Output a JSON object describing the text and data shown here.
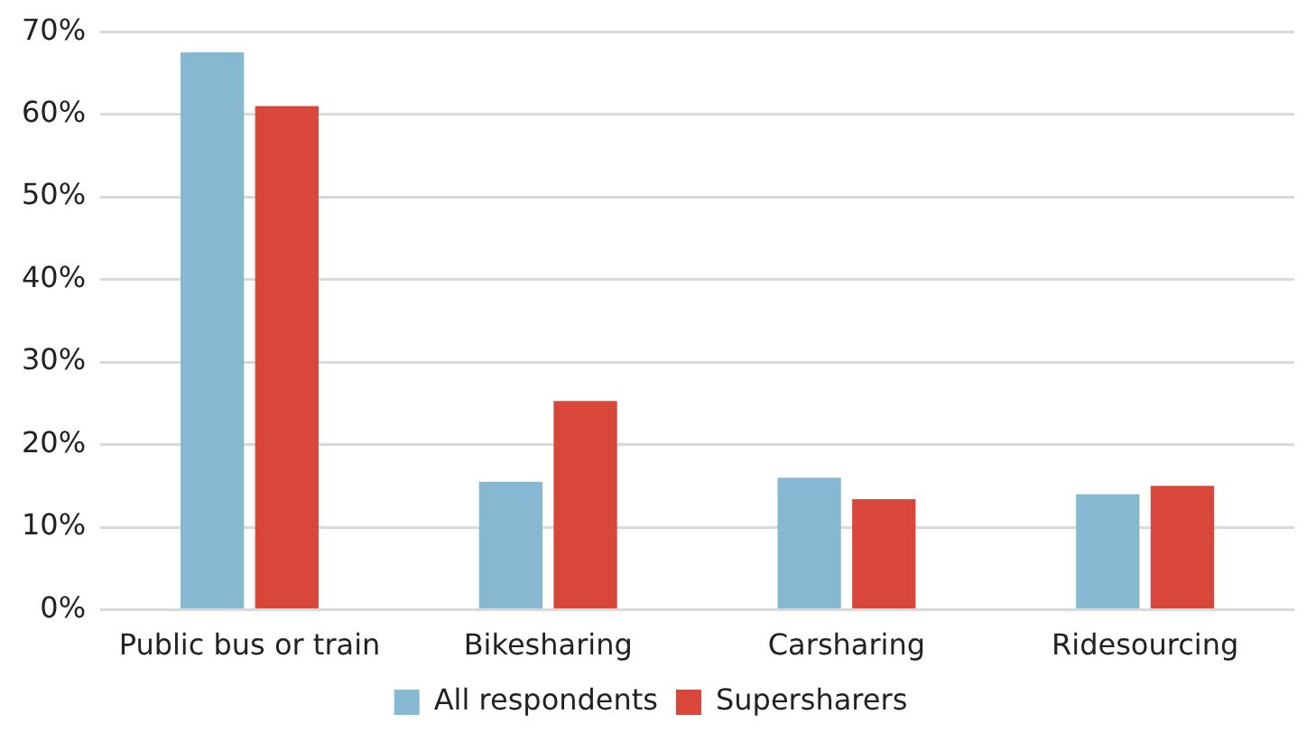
{
  "chart_data": {
    "type": "bar",
    "categories": [
      "Public bus or train",
      "Bikesharing",
      "Carsharing",
      "Ridesourcing"
    ],
    "series": [
      {
        "name": "All respondents",
        "color": "#86b9d1",
        "values": [
          67.5,
          15.5,
          16,
          14
        ]
      },
      {
        "name": "Supersharers",
        "color": "#d9473b",
        "values": [
          61,
          25.3,
          13.4,
          15
        ]
      }
    ],
    "ylim": [
      0,
      70
    ],
    "yticks": [
      {
        "value": 0,
        "label": "0%"
      },
      {
        "value": 10,
        "label": "10%"
      },
      {
        "value": 20,
        "label": "20%"
      },
      {
        "value": 30,
        "label": "30%"
      },
      {
        "value": 40,
        "label": "40%"
      },
      {
        "value": 50,
        "label": "50%"
      },
      {
        "value": 60,
        "label": "60%"
      },
      {
        "value": 70,
        "label": "70%"
      }
    ],
    "grid": "y",
    "legend": "bottom"
  }
}
